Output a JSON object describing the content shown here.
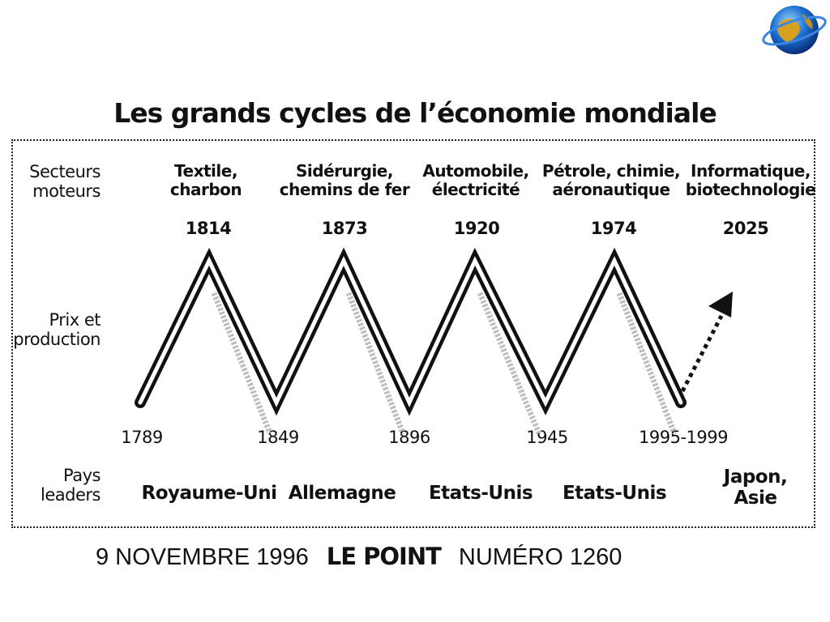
{
  "title": "Les grands cycles de l’économie mondiale",
  "side_labels": {
    "sectors": [
      "Secteurs",
      "moteurs"
    ],
    "prices": [
      "Prix et",
      "production"
    ],
    "leaders": [
      "Pays",
      "leaders"
    ]
  },
  "sectors": [
    [
      "Textile,",
      "charbon"
    ],
    [
      "Sidérurgie,",
      "chemins de fer"
    ],
    [
      "Automobile,",
      "électricité"
    ],
    [
      "Pétrole, chimie,",
      "aéronautique"
    ],
    [
      "Informatique,",
      "biotechnologie"
    ]
  ],
  "leaders": [
    [
      "Royaume-Uni"
    ],
    [
      "Allemagne"
    ],
    [
      "Etats-Unis"
    ],
    [
      "Etats-Unis"
    ],
    [
      "Japon,",
      "Asie"
    ]
  ],
  "footer": {
    "date": "9 NOVEMBRE 1996",
    "publication": "LE POINT",
    "issue": "NUMÉRO 1260"
  },
  "chart_data": {
    "type": "line",
    "title": "Les grands cycles de l’économie mondiale",
    "ylabel": "Prix et production",
    "points": [
      {
        "label": "1789",
        "kind": "trough"
      },
      {
        "label": "1814",
        "kind": "peak"
      },
      {
        "label": "1849",
        "kind": "trough"
      },
      {
        "label": "1873",
        "kind": "peak"
      },
      {
        "label": "1896",
        "kind": "trough"
      },
      {
        "label": "1920",
        "kind": "peak"
      },
      {
        "label": "1945",
        "kind": "trough"
      },
      {
        "label": "1974",
        "kind": "peak"
      },
      {
        "label": "1995-1999",
        "kind": "trough"
      },
      {
        "label": "2025",
        "kind": "peak",
        "projected": true
      }
    ],
    "colors": {
      "line": "#111111",
      "line_fill": "#ffffff",
      "shadow": "#bdbdbd"
    }
  }
}
